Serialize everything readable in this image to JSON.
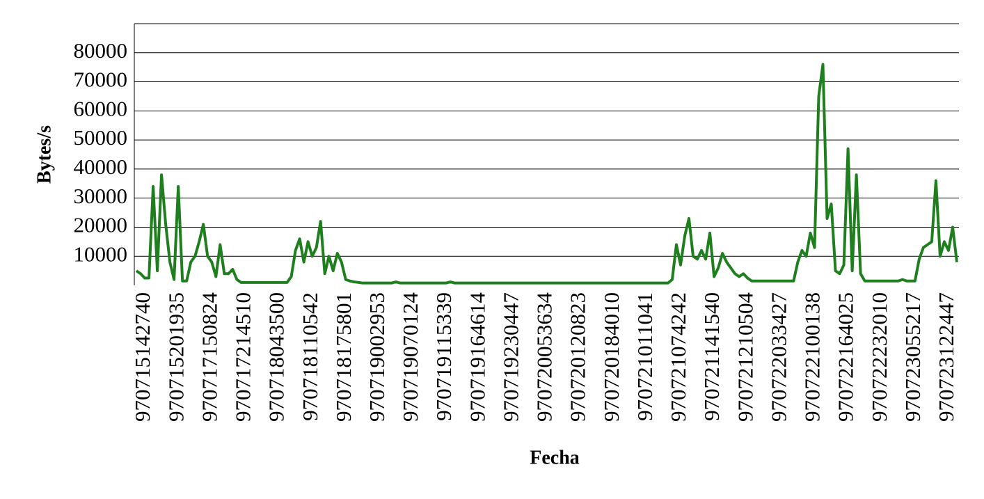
{
  "chart_data": {
    "type": "line",
    "x_label": "Fecha",
    "y_label": "Bytes/s",
    "color": "#1f7f1f",
    "grid": true,
    "ylim": [
      0,
      90000
    ],
    "yticks": [
      10000,
      20000,
      30000,
      40000,
      50000,
      60000,
      70000,
      80000
    ],
    "categories": [
      null,
      null,
      "970715142740",
      null,
      null,
      null,
      null,
      null,
      null,
      null,
      "970715201935",
      null,
      null,
      null,
      null,
      null,
      null,
      null,
      "970717150824",
      null,
      null,
      null,
      null,
      null,
      null,
      null,
      "970717214510",
      null,
      null,
      null,
      null,
      null,
      null,
      null,
      "970718043500",
      null,
      null,
      null,
      null,
      null,
      null,
      null,
      "970718110542",
      null,
      null,
      null,
      null,
      null,
      null,
      null,
      "970718175801",
      null,
      null,
      null,
      null,
      null,
      null,
      null,
      "970719002953",
      null,
      null,
      null,
      null,
      null,
      null,
      null,
      "970719070124",
      null,
      null,
      null,
      null,
      null,
      null,
      null,
      "970719115339",
      null,
      null,
      null,
      null,
      null,
      null,
      null,
      "970719164614",
      null,
      null,
      null,
      null,
      null,
      null,
      null,
      "970719230447",
      null,
      null,
      null,
      null,
      null,
      null,
      null,
      "970720053634",
      null,
      null,
      null,
      null,
      null,
      null,
      null,
      "970720120823",
      null,
      null,
      null,
      null,
      null,
      null,
      null,
      "970720184010",
      null,
      null,
      null,
      null,
      null,
      null,
      null,
      "970721011041",
      null,
      null,
      null,
      null,
      null,
      null,
      null,
      "970721074242",
      null,
      null,
      null,
      null,
      null,
      null,
      null,
      "970721141540",
      null,
      null,
      null,
      null,
      null,
      null,
      null,
      "970721210504",
      null,
      null,
      null,
      null,
      null,
      null,
      null,
      "970722033427",
      null,
      null,
      null,
      null,
      null,
      null,
      null,
      "970722100138",
      null,
      null,
      null,
      null,
      null,
      null,
      null,
      "970722164025",
      null,
      null,
      null,
      null,
      null,
      null,
      null,
      "970722232010",
      null,
      null,
      null,
      null,
      null,
      null,
      null,
      "970723055217",
      null,
      null,
      null,
      null,
      null,
      null,
      null,
      "970723122447",
      null,
      null
    ],
    "values": [
      5000,
      4000,
      2500,
      2500,
      34000,
      5000,
      38000,
      21000,
      8000,
      2000,
      34000,
      1500,
      1500,
      8000,
      10000,
      15000,
      21000,
      10000,
      8000,
      3000,
      14000,
      4000,
      4000,
      5500,
      2000,
      1000,
      1000,
      1000,
      1000,
      1000,
      1000,
      1000,
      1000,
      1000,
      1000,
      1000,
      1000,
      3000,
      12000,
      16000,
      8000,
      15000,
      10000,
      13000,
      22000,
      4000,
      10000,
      5000,
      11000,
      8000,
      2000,
      1500,
      1200,
      1000,
      800,
      800,
      800,
      800,
      800,
      800,
      800,
      800,
      1200,
      800,
      800,
      800,
      800,
      800,
      800,
      800,
      800,
      800,
      800,
      800,
      800,
      1200,
      800,
      800,
      800,
      800,
      800,
      800,
      800,
      800,
      800,
      800,
      800,
      800,
      800,
      800,
      800,
      800,
      800,
      800,
      800,
      800,
      800,
      800,
      800,
      800,
      800,
      800,
      800,
      800,
      800,
      800,
      800,
      800,
      800,
      800,
      800,
      800,
      800,
      800,
      800,
      800,
      800,
      800,
      800,
      800,
      800,
      800,
      800,
      800,
      800,
      800,
      800,
      800,
      2000,
      14000,
      7000,
      17000,
      23000,
      10000,
      9000,
      12000,
      9000,
      18000,
      3000,
      6000,
      11000,
      8000,
      6000,
      4000,
      3000,
      4000,
      2500,
      1500,
      1500,
      1500,
      1500,
      1500,
      1500,
      1500,
      1500,
      1500,
      1500,
      1500,
      8000,
      12000,
      10000,
      18000,
      13000,
      65000,
      76000,
      23000,
      28000,
      5000,
      4000,
      7000,
      47000,
      5000,
      38000,
      4000,
      1500,
      1500,
      1500,
      1500,
      1500,
      1500,
      1500,
      1500,
      1500,
      2000,
      1500,
      1500,
      1500,
      9000,
      13000,
      14000,
      15000,
      36000,
      10000,
      15000,
      12000,
      20000,
      8000
    ]
  }
}
